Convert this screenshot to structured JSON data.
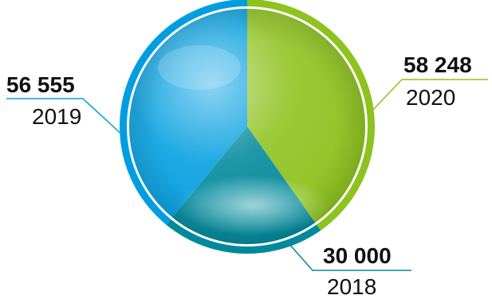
{
  "chart_data": {
    "type": "pie",
    "slices": [
      {
        "label": "2020",
        "value": 58248,
        "value_text": "58 248",
        "color": "#8dc21f"
      },
      {
        "label": "2018",
        "value": 30000,
        "value_text": "30 000",
        "color": "#00899b"
      },
      {
        "label": "2019",
        "value": 56555,
        "value_text": "56 555",
        "color": "#009ee0"
      }
    ]
  }
}
